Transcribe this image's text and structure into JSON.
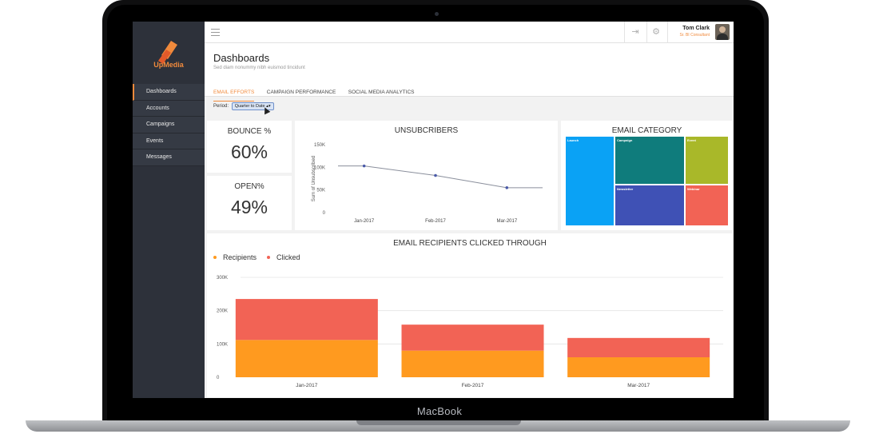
{
  "device": {
    "brand": "MacBook"
  },
  "app": {
    "name": "UpMedia"
  },
  "colors": {
    "accent": "#f08a3c",
    "sidebar": "#2d313a",
    "recipients": "#ff9a1f",
    "clicked": "#f26355"
  },
  "sidebar": {
    "items": [
      {
        "label": "Dashboards",
        "active": true
      },
      {
        "label": "Accounts"
      },
      {
        "label": "Campaigns"
      },
      {
        "label": "Events"
      },
      {
        "label": "Messages"
      }
    ]
  },
  "topbar": {
    "menu_icon": "hamburger-icon",
    "login_icon": "sign-in-icon",
    "settings_icon": "gear-icon"
  },
  "user": {
    "name": "Tom Clark",
    "role": "Sr. BI Consultant"
  },
  "page": {
    "title": "Dashboards",
    "subtitle": "Sed diam nonummy nibh euismod tincidunt"
  },
  "tabs": [
    {
      "label": "EMAIL EFFORTS",
      "active": true
    },
    {
      "label": "CAMPAIGN PERFORMANCE"
    },
    {
      "label": "SOCIAL MEDIA ANALYTICS"
    }
  ],
  "period": {
    "label": "Period:",
    "value": "Quarter to Date"
  },
  "kpis": {
    "bounce": {
      "label": "BOUNCE %",
      "value": "60%"
    },
    "open": {
      "label": "OPEN%",
      "value": "49%"
    }
  },
  "charts": {
    "unsubscribers": {
      "title": "UNSUBCRIBERS"
    },
    "category": {
      "title": "EMAIL CATEGORY"
    },
    "recipients": {
      "title": "EMAIL RECIPIENTS CLICKED THROUGH"
    }
  },
  "chart_data": [
    {
      "type": "line",
      "title": "UNSUBCRIBERS",
      "ylabel": "Sum of Unsubscribed",
      "xlabel": "",
      "categories": [
        "Jan-2017",
        "Feb-2017",
        "Mar-2017"
      ],
      "values": [
        103000,
        82000,
        55000
      ],
      "ylim": [
        0,
        150000
      ],
      "yticks": [
        0,
        50000,
        100000,
        150000
      ],
      "ytick_labels": [
        "0",
        "50K",
        "100K",
        "150K"
      ],
      "grid": false
    },
    {
      "type": "heatmap",
      "title": "EMAIL CATEGORY",
      "subtype": "treemap",
      "categories": [
        "Launch",
        "Campaign",
        "Event",
        "Newsletter",
        "Webinar"
      ],
      "colors": [
        "#0aa2f5",
        "#0f7c7c",
        "#a9b829",
        "#3f51b5",
        "#f26355"
      ]
    },
    {
      "type": "bar",
      "stacked": true,
      "title": "EMAIL RECIPIENTS CLICKED THROUGH",
      "categories": [
        "Jan-2017",
        "Feb-2017",
        "Mar-2017"
      ],
      "series": [
        {
          "name": "Recipients",
          "values": [
            112000,
            80000,
            60000
          ],
          "color": "#ff9a1f"
        },
        {
          "name": "Clicked",
          "values": [
            123000,
            78000,
            58000
          ],
          "color": "#f26355"
        }
      ],
      "ylim": [
        0,
        300000
      ],
      "yticks": [
        0,
        100000,
        200000,
        300000
      ],
      "ytick_labels": [
        "0",
        "100K",
        "200K",
        "300K"
      ],
      "legend": "top-left",
      "grid": true
    }
  ]
}
